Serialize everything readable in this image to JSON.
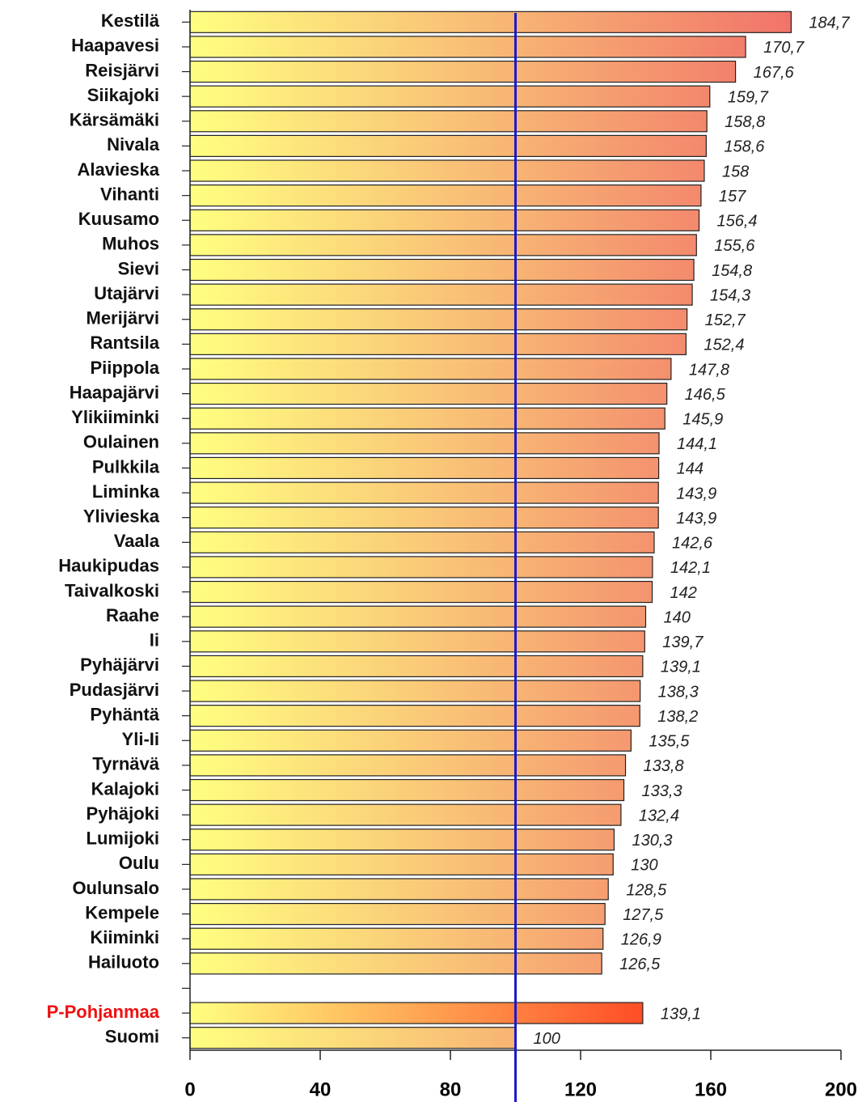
{
  "chart_data": {
    "type": "bar",
    "orientation": "horizontal",
    "categories": [
      "Kestilä",
      "Haapavesi",
      "Reisjärvi",
      "Siikajoki",
      "Kärsämäki",
      "Nivala",
      "Alavieska",
      "Vihanti",
      "Kuusamo",
      "Muhos",
      "Sievi",
      "Utajärvi",
      "Merijärvi",
      "Rantsila",
      "Piippola",
      "Haapajärvi",
      "Ylikiiminki",
      "Oulainen",
      "Pulkkila",
      "Liminka",
      "Ylivieska",
      "Vaala",
      "Haukipudas",
      "Taivalkoski",
      "Raahe",
      "Ii",
      "Pyhäjärvi",
      "Pudasjärvi",
      "Pyhäntä",
      "Yli-Ii",
      "Tyrnävä",
      "Kalajoki",
      "Pyhäjoki",
      "Lumijoki",
      "Oulu",
      "Oulunsalo",
      "Kempele",
      "Kiiminki",
      "Hailuoto",
      null,
      "P-Pohjanmaa",
      "Suomi"
    ],
    "values": [
      184.7,
      170.7,
      167.6,
      159.7,
      158.8,
      158.6,
      158,
      157,
      156.4,
      155.6,
      154.8,
      154.3,
      152.7,
      152.4,
      147.8,
      146.5,
      145.9,
      144.1,
      144,
      143.9,
      143.9,
      142.6,
      142.1,
      142,
      140,
      139.7,
      139.1,
      138.3,
      138.2,
      135.5,
      133.8,
      133.3,
      132.4,
      130.3,
      130,
      128.5,
      127.5,
      126.9,
      126.5,
      null,
      139.1,
      100
    ],
    "value_labels": [
      "184,7",
      "170,7",
      "167,6",
      "159,7",
      "158,8",
      "158,6",
      "158",
      "157",
      "156,4",
      "155,6",
      "154,8",
      "154,3",
      "152,7",
      "152,4",
      "147,8",
      "146,5",
      "145,9",
      "144,1",
      "144",
      "143,9",
      "143,9",
      "142,6",
      "142,1",
      "142",
      "140",
      "139,7",
      "139,1",
      "138,3",
      "138,2",
      "135,5",
      "133,8",
      "133,3",
      "132,4",
      "130,3",
      "130",
      "128,5",
      "127,5",
      "126,9",
      "126,5",
      null,
      "139,1",
      "100"
    ],
    "colors": [
      "#f06868",
      "#f06868",
      "#f06868",
      "#f06868",
      "#f06868",
      "#f06868",
      "#f06868",
      "#f06868",
      "#f06868",
      "#f06868",
      "#f06868",
      "#f06868",
      "#f06868",
      "#f06868",
      "#f06868",
      "#f06868",
      "#f06868",
      "#f06868",
      "#f06868",
      "#f06868",
      "#f06868",
      "#f06868",
      "#f06868",
      "#f06868",
      "#f06868",
      "#f06868",
      "#f06868",
      "#f06868",
      "#f06868",
      "#f06868",
      "#f06868",
      "#f06868",
      "#f06868",
      "#f06868",
      "#f06868",
      "#f06868",
      "#f06868",
      "#f06868",
      "#f06868",
      null,
      "#ff0000",
      "#f06868"
    ],
    "label_colors": [
      "#111",
      "#111",
      "#111",
      "#111",
      "#111",
      "#111",
      "#111",
      "#111",
      "#111",
      "#111",
      "#111",
      "#111",
      "#111",
      "#111",
      "#111",
      "#111",
      "#111",
      "#111",
      "#111",
      "#111",
      "#111",
      "#111",
      "#111",
      "#111",
      "#111",
      "#111",
      "#111",
      "#111",
      "#111",
      "#111",
      "#111",
      "#111",
      "#111",
      "#111",
      "#111",
      "#111",
      "#111",
      "#111",
      "#111",
      null,
      "#ee1111",
      "#111"
    ],
    "base_color": "#ffff80",
    "xlim": [
      0,
      200
    ],
    "xticks": [
      0,
      40,
      80,
      120,
      160,
      200
    ],
    "reference_line": {
      "value": 100,
      "color": "#1a1acc"
    }
  }
}
